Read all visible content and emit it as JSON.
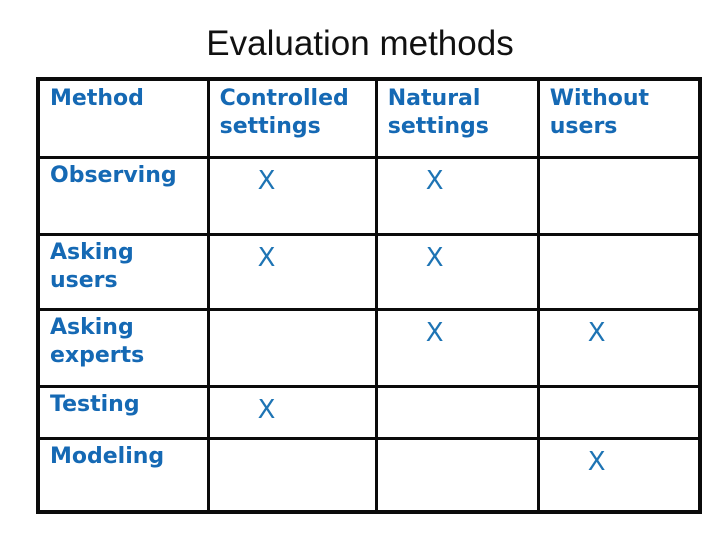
{
  "slide": {
    "title": "Evaluation methods"
  },
  "table": {
    "columns": [
      "Method",
      "Controlled settings",
      "Natural settings",
      "Without users"
    ],
    "rows": [
      {
        "label": "Observing",
        "marks": [
          "X",
          "X",
          ""
        ]
      },
      {
        "label": "Asking users",
        "marks": [
          "X",
          "X",
          ""
        ]
      },
      {
        "label": "Asking experts",
        "marks": [
          "",
          "X",
          "X"
        ]
      },
      {
        "label": "Testing",
        "marks": [
          "X",
          "",
          ""
        ]
      },
      {
        "label": "Modeling",
        "marks": [
          "",
          "",
          "X"
        ]
      }
    ]
  },
  "colors": {
    "accent_text": "#1569b4",
    "mark_text": "#1e74b4",
    "border": "#0b0b0b",
    "title_text": "#111111",
    "background": "#ffffff"
  }
}
